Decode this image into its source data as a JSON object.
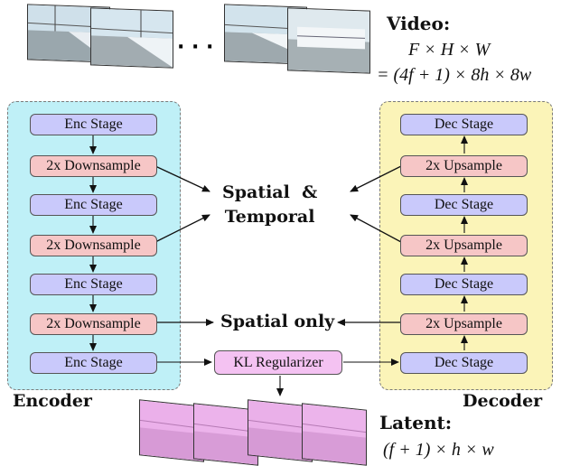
{
  "video": {
    "title": "Video:",
    "formula_1": "F × H × W",
    "formula_2": "= (4f + 1) × 8h × 8w",
    "ellipsis": "· · ·"
  },
  "encoder": {
    "label": "Encoder",
    "stages": [
      "Enc Stage",
      "2x Downsample",
      "Enc Stage",
      "2x Downsample",
      "Enc Stage",
      "2x Downsample",
      "Enc Stage"
    ]
  },
  "decoder": {
    "label": "Decoder",
    "stages": [
      "Dec Stage",
      "2x Upsample",
      "Dec Stage",
      "2x Upsample",
      "Dec Stage",
      "2x Upsample",
      "Dec Stage"
    ]
  },
  "regularizer": "KL Regularizer",
  "annotations": {
    "spatial_temporal": "Spatial  &\nTemporal",
    "spatial_only": "Spatial only"
  },
  "latent": {
    "title": "Latent:",
    "formula": "(f + 1) × h × w"
  },
  "colors": {
    "stage": "#c9c9fb",
    "sample": "#f6c6c6",
    "kl": "#f4c2f2",
    "encoder_bg": "#bff0f7",
    "decoder_bg": "#fbf4b8"
  }
}
